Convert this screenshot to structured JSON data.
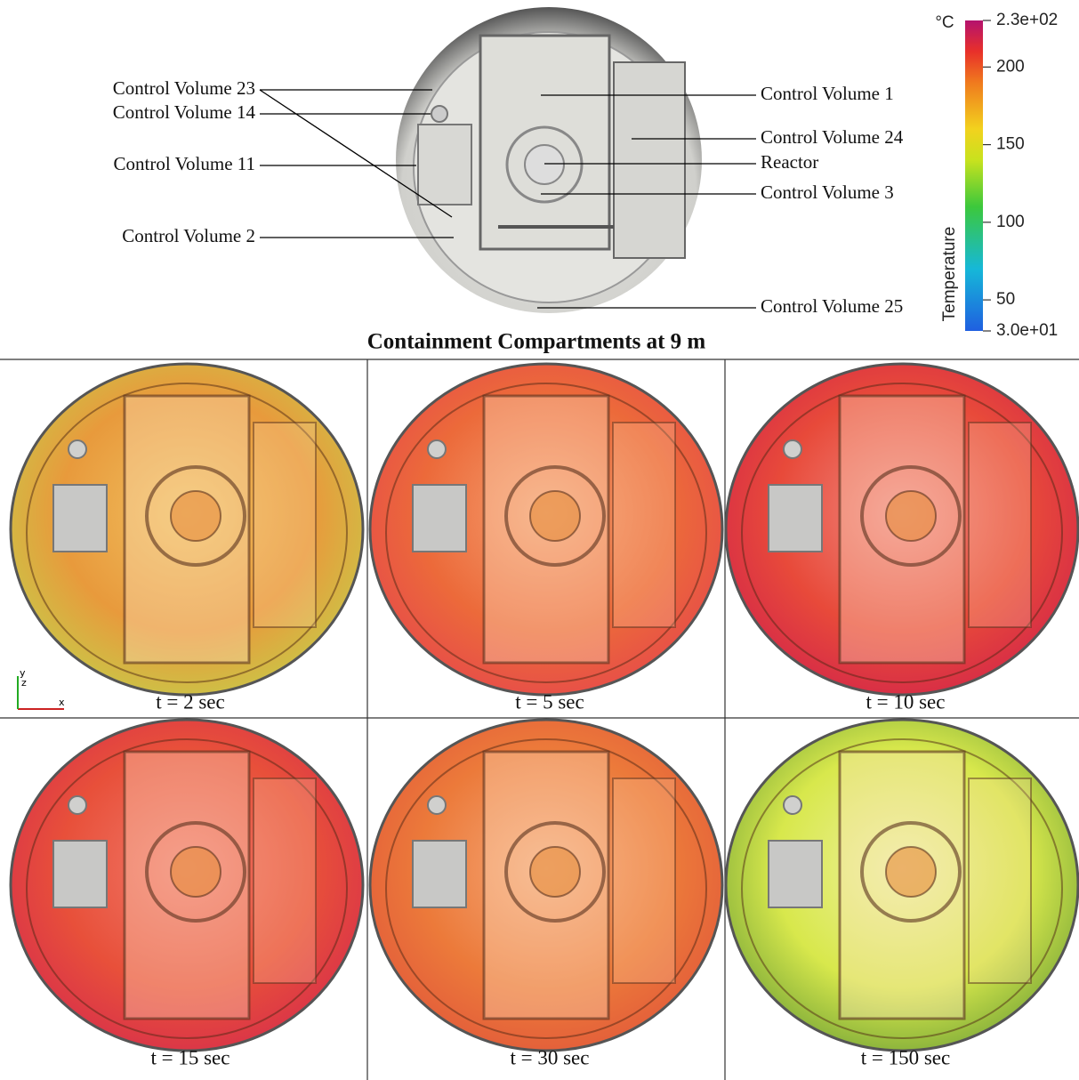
{
  "figure": {
    "top_labels_left": [
      "Control Volume 23",
      "Control Volume 14",
      "Control Volume 11",
      "Control Volume 2"
    ],
    "top_labels_right": [
      "Control Volume 1",
      "Control Volume 24",
      "Reactor",
      "Control Volume 3",
      "Control Volume 25"
    ],
    "title": "Containment Compartments at 9 m",
    "colorbar": {
      "label": "Temperature",
      "unit": "°C",
      "range": [
        30,
        230
      ],
      "ticks": [
        {
          "value": 230,
          "label": "2.3e+02"
        },
        200,
        150,
        100,
        50,
        {
          "value": 30,
          "label": "3.0e+01"
        }
      ]
    },
    "axes_triad": [
      "y",
      "z",
      "x"
    ],
    "panels": [
      "t = 2 sec",
      "t = 5 sec",
      "t = 10 sec",
      "t = 15 sec",
      "t = 30 sec",
      "t = 150 sec"
    ]
  }
}
